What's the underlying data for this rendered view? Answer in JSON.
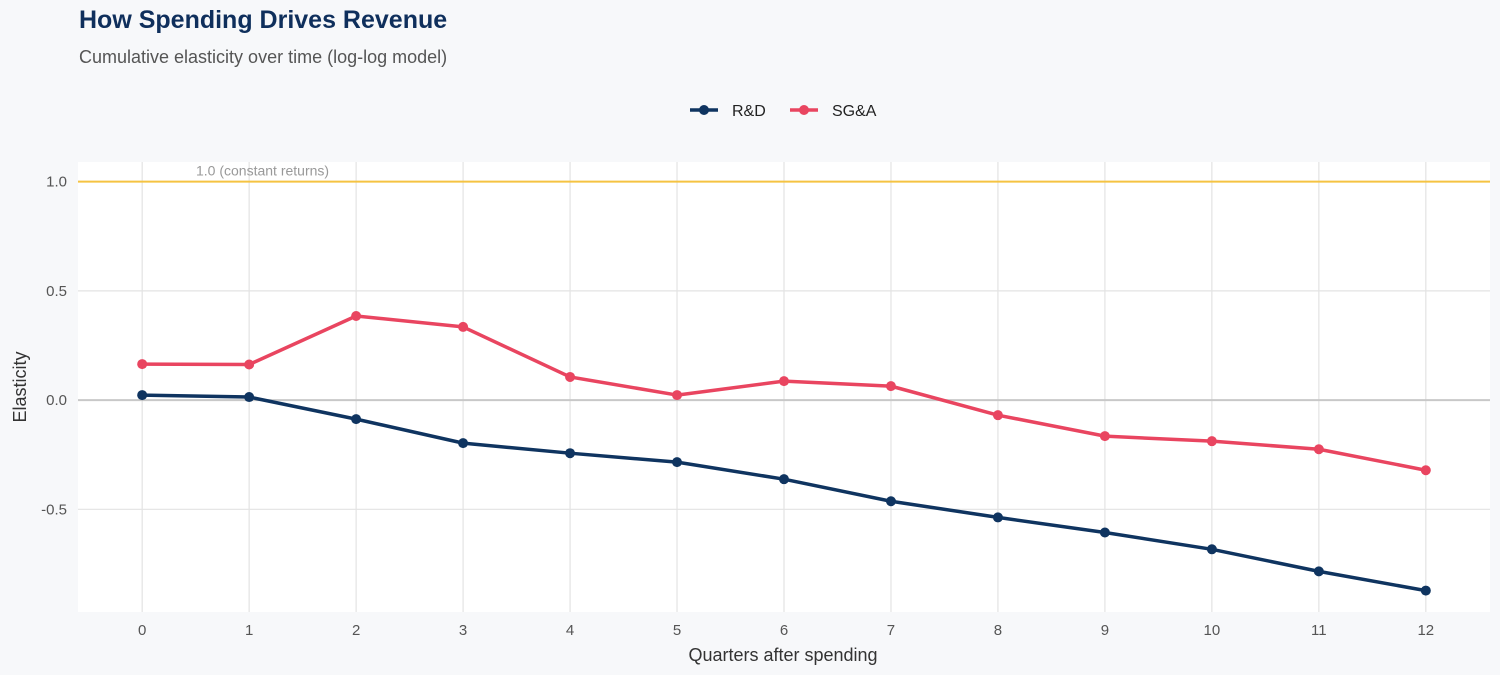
{
  "chart_data": {
    "type": "line",
    "title": "How Spending Drives Revenue",
    "subtitle": "Cumulative elasticity over time (log-log model)",
    "xlabel": "Quarters after spending",
    "ylabel": "Elasticity",
    "x": [
      0,
      1,
      2,
      3,
      4,
      5,
      6,
      7,
      8,
      9,
      10,
      11,
      12
    ],
    "xticks": [
      "0",
      "1",
      "2",
      "3",
      "4",
      "5",
      "6",
      "7",
      "8",
      "9",
      "10",
      "11",
      "12"
    ],
    "yticks": [
      "1.0",
      "0.5",
      "0.0",
      "-0.5"
    ],
    "ytick_values": [
      1.0,
      0.5,
      0.0,
      -0.5
    ],
    "ylim": [
      -0.97,
      1.09
    ],
    "xlim": [
      -0.6,
      12.6
    ],
    "grid": true,
    "legend_position": "top",
    "series": [
      {
        "name": "R&D",
        "color": "#0f3460",
        "values": [
          0.023,
          0.014,
          -0.087,
          -0.197,
          -0.243,
          -0.284,
          -0.362,
          -0.463,
          -0.537,
          -0.606,
          -0.683,
          -0.784,
          -0.872
        ]
      },
      {
        "name": "SG&A",
        "color": "#e94560",
        "values": [
          0.165,
          0.163,
          0.385,
          0.335,
          0.106,
          0.023,
          0.087,
          0.064,
          -0.069,
          -0.165,
          -0.188,
          -0.225,
          -0.321
        ]
      }
    ],
    "reference_lines": [
      {
        "y": 1.0,
        "label": "1.0 (constant returns)",
        "color": "#f5c342"
      },
      {
        "y": 0.0,
        "label": "",
        "color": "#c8c8c8"
      }
    ]
  }
}
